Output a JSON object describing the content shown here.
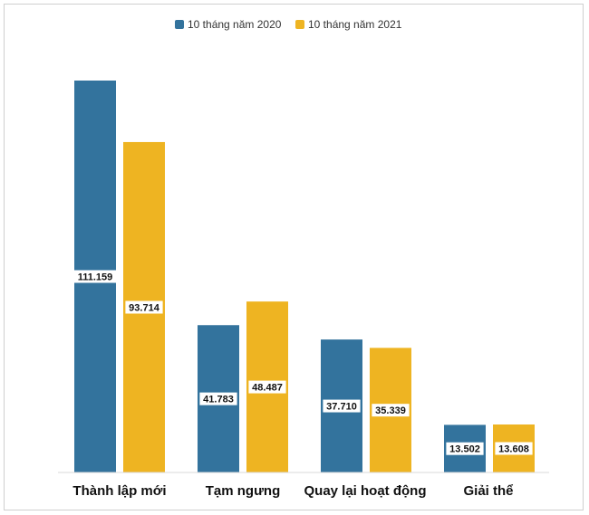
{
  "chart_data": {
    "type": "bar",
    "categories": [
      "Thành lập mới",
      "Tạm ngưng",
      "Quay lại hoạt động",
      "Giải thể"
    ],
    "series": [
      {
        "name": "10 tháng năm 2020",
        "color": "#33739d",
        "values": [
          111159,
          41783,
          37710,
          13502
        ],
        "labels": [
          "111.159",
          "41.783",
          "37.710",
          "13.502"
        ]
      },
      {
        "name": "10 tháng năm 2021",
        "color": "#eeb422",
        "values": [
          93714,
          48487,
          35339,
          13608
        ],
        "labels": [
          "93.714",
          "48.487",
          "35.339",
          "13.608"
        ]
      }
    ],
    "title": "",
    "xlabel": "",
    "ylabel": "",
    "ylim": [
      0,
      111159
    ],
    "grid": false,
    "legend": "top-center"
  }
}
